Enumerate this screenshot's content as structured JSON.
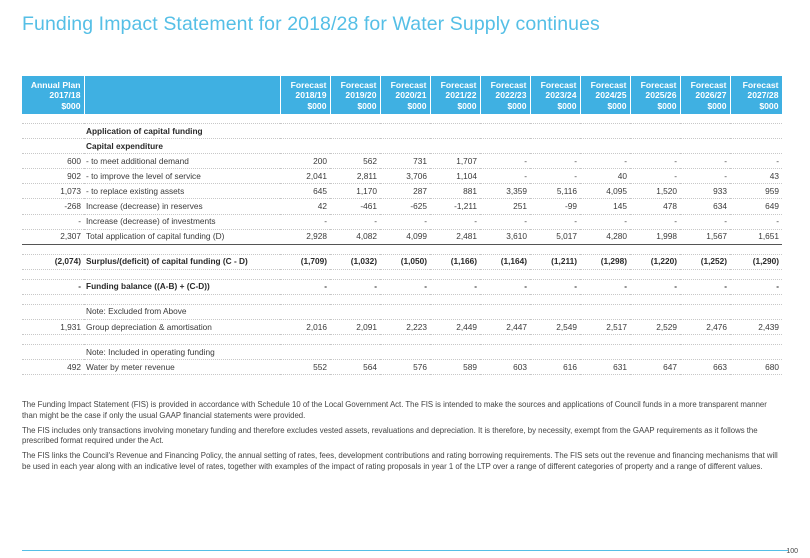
{
  "title": "Funding Impact Statement for 2018/28 for Water Supply continues",
  "headers": {
    "annual_plan": [
      "Annual Plan",
      "2017/18",
      "$000"
    ],
    "forecasts": [
      [
        "Forecast",
        "2018/19",
        "$000"
      ],
      [
        "Forecast",
        "2019/20",
        "$000"
      ],
      [
        "Forecast",
        "2020/21",
        "$000"
      ],
      [
        "Forecast",
        "2021/22",
        "$000"
      ],
      [
        "Forecast",
        "2022/23",
        "$000"
      ],
      [
        "Forecast",
        "2023/24",
        "$000"
      ],
      [
        "Forecast",
        "2024/25",
        "$000"
      ],
      [
        "Forecast",
        "2025/26",
        "$000"
      ],
      [
        "Forecast",
        "2026/27",
        "$000"
      ],
      [
        "Forecast",
        "2027/28",
        "$000"
      ]
    ]
  },
  "rows": [
    {
      "type": "blank"
    },
    {
      "type": "heading",
      "ap": "",
      "label": "Application of capital funding",
      "values": [
        "",
        "",
        "",
        "",
        "",
        "",
        "",
        "",
        "",
        ""
      ]
    },
    {
      "type": "heading",
      "ap": "",
      "label": "Capital expenditure",
      "values": [
        "",
        "",
        "",
        "",
        "",
        "",
        "",
        "",
        "",
        ""
      ]
    },
    {
      "type": "normal",
      "ap": "600",
      "label": "- to meet additional demand",
      "values": [
        "200",
        "562",
        "731",
        "1,707",
        "-",
        "-",
        "-",
        "-",
        "-",
        "-"
      ]
    },
    {
      "type": "normal",
      "ap": "902",
      "label": "- to improve the level of service",
      "values": [
        "2,041",
        "2,811",
        "3,706",
        "1,104",
        "-",
        "-",
        "40",
        "-",
        "-",
        "43"
      ]
    },
    {
      "type": "normal",
      "ap": "1,073",
      "label": "- to replace existing assets",
      "values": [
        "645",
        "1,170",
        "287",
        "881",
        "3,359",
        "5,116",
        "4,095",
        "1,520",
        "933",
        "959"
      ]
    },
    {
      "type": "normal",
      "ap": "-268",
      "label": "Increase (decrease) in reserves",
      "values": [
        "42",
        "-461",
        "-625",
        "-1,211",
        "251",
        "-99",
        "145",
        "478",
        "634",
        "649"
      ]
    },
    {
      "type": "normal",
      "ap": "-",
      "label": "Increase (decrease) of investments",
      "values": [
        "-",
        "-",
        "-",
        "-",
        "-",
        "-",
        "-",
        "-",
        "-",
        "-"
      ]
    },
    {
      "type": "total",
      "ap": "2,307",
      "label": "Total application of capital funding (D)",
      "values": [
        "2,928",
        "4,082",
        "4,099",
        "2,481",
        "3,610",
        "5,017",
        "4,280",
        "1,998",
        "1,567",
        "1,651"
      ]
    },
    {
      "type": "blank"
    },
    {
      "type": "bold",
      "ap": "(2,074)",
      "label": "Surplus/(deficit) of capital funding (C - D)",
      "values": [
        "(1,709)",
        "(1,032)",
        "(1,050)",
        "(1,166)",
        "(1,164)",
        "(1,211)",
        "(1,298)",
        "(1,220)",
        "(1,252)",
        "(1,290)"
      ]
    },
    {
      "type": "blank"
    },
    {
      "type": "bold",
      "ap": "-",
      "label": "Funding balance ((A-B) + (C-D))",
      "values": [
        "-",
        "-",
        "-",
        "-",
        "-",
        "-",
        "-",
        "-",
        "-",
        "-"
      ]
    },
    {
      "type": "blank"
    },
    {
      "type": "normal",
      "ap": "",
      "label": "Note: Excluded from Above",
      "values": [
        "",
        "",
        "",
        "",
        "",
        "",
        "",
        "",
        "",
        ""
      ]
    },
    {
      "type": "normal",
      "ap": "1,931",
      "label": "Group depreciation & amortisation",
      "values": [
        "2,016",
        "2,091",
        "2,223",
        "2,449",
        "2,447",
        "2,549",
        "2,517",
        "2,529",
        "2,476",
        "2,439"
      ]
    },
    {
      "type": "blank"
    },
    {
      "type": "normal",
      "ap": "",
      "label": "Note: Included in operating funding",
      "values": [
        "",
        "",
        "",
        "",
        "",
        "",
        "",
        "",
        "",
        ""
      ]
    },
    {
      "type": "normal",
      "ap": "492",
      "label": "Water by meter revenue",
      "values": [
        "552",
        "564",
        "576",
        "589",
        "603",
        "616",
        "631",
        "647",
        "663",
        "680"
      ]
    }
  ],
  "notes": [
    "The Funding Impact Statement (FIS) is provided in accordance with Schedule 10 of the Local Government Act. The FIS is intended to make the sources and applications of Council funds in a more transparent manner than might be the case if only the usual GAAP financial statements were provided.",
    "The FIS includes only transactions involving monetary funding and therefore excludes vested assets, revaluations and depreciation.  It is therefore, by necessity, exempt from the GAAP requirements as it follows the prescribed format required under the Act.",
    "The FIS links the Council's Revenue and Financing Policy, the annual setting of rates, fees, development contributions and rating borrowing requirements.  The FIS sets out the revenue and financing mechanisms that will be used in each year along with an indicative level of rates, together with examples of the impact of rating proposals in year 1 of the LTP over a range of different categories of property and a range of different values."
  ],
  "page_number": "100"
}
